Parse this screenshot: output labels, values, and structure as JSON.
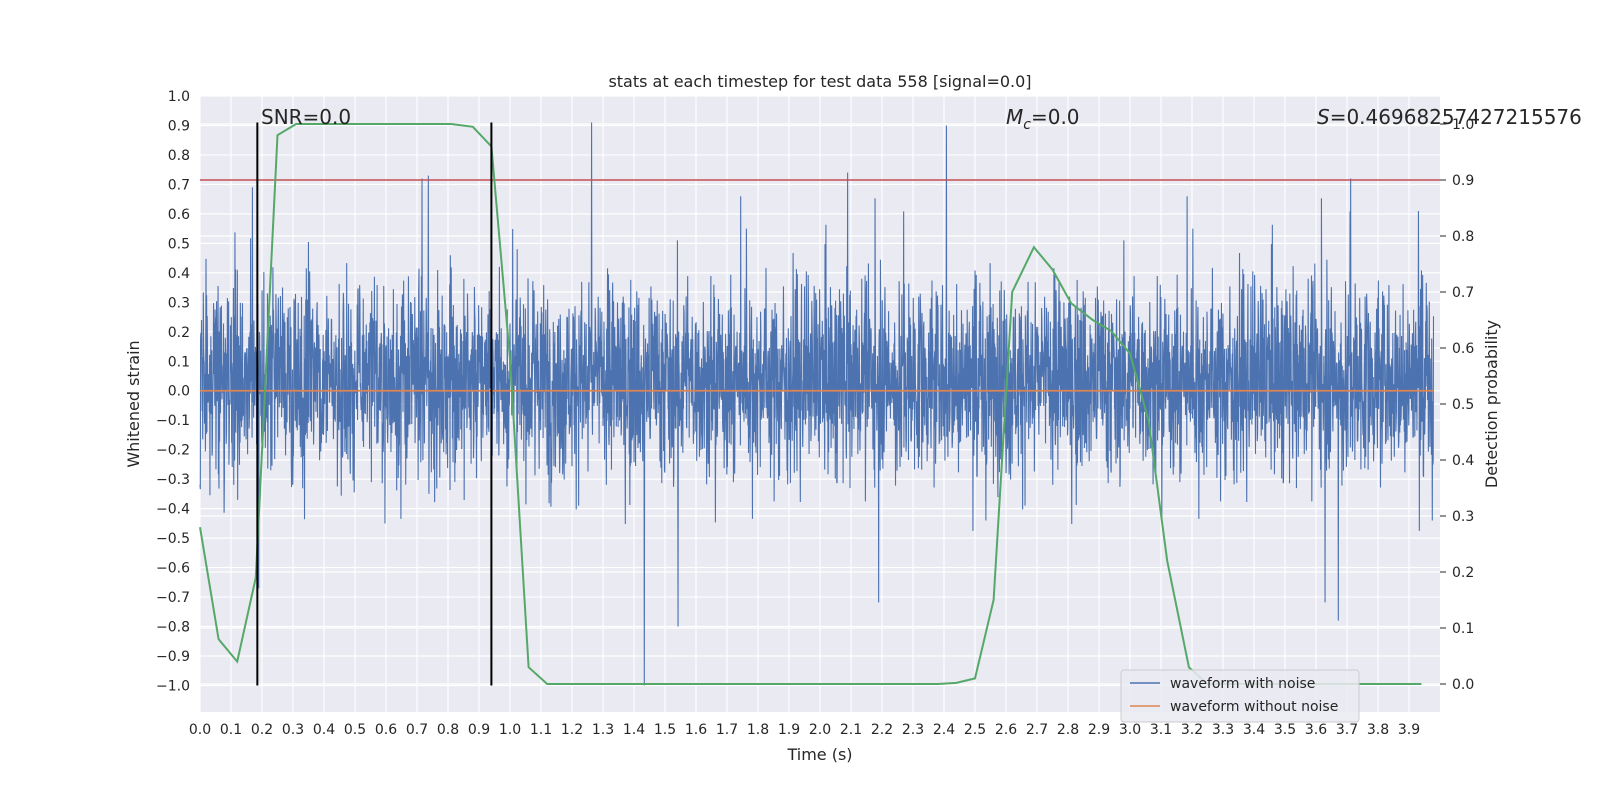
{
  "chart_data": {
    "type": "line",
    "title": "stats at each timestep for test data 558 [signal=0.0]",
    "xlabel": "Time (s)",
    "ylabel": "Whitened strain",
    "ylabel_right": "Detection probability",
    "xlim": [
      0.0,
      4.0
    ],
    "ylim": [
      -1.09,
      1.0
    ],
    "ylim_right": [
      -0.05,
      1.05
    ],
    "x_ticks": [
      "0.0",
      "0.1",
      "0.2",
      "0.3",
      "0.4",
      "0.5",
      "0.6",
      "0.7",
      "0.8",
      "0.9",
      "1.0",
      "1.1",
      "1.2",
      "1.3",
      "1.4",
      "1.5",
      "1.6",
      "1.7",
      "1.8",
      "1.9",
      "2.0",
      "2.1",
      "2.2",
      "2.3",
      "2.4",
      "2.5",
      "2.6",
      "2.7",
      "2.8",
      "2.9",
      "3.0",
      "3.1",
      "3.2",
      "3.3",
      "3.4",
      "3.5",
      "3.6",
      "3.7",
      "3.8",
      "3.9"
    ],
    "y_ticks": [
      "1.0",
      "0.9",
      "0.8",
      "0.7",
      "0.6",
      "0.5",
      "0.4",
      "0.3",
      "0.2",
      "0.1",
      "0.0",
      "−0.1",
      "−0.2",
      "−0.3",
      "−0.4",
      "−0.5",
      "−0.6",
      "−0.7",
      "−0.8",
      "−0.9",
      "−1.0"
    ],
    "y_right_ticks": [
      "0.0",
      "0.1",
      "0.2",
      "0.3",
      "0.4",
      "0.5",
      "0.6",
      "0.7",
      "0.8",
      "0.9",
      "1.0"
    ],
    "annotations": {
      "snr": "SNR=0.0",
      "mc_symbol": "M",
      "mc_sub": "c",
      "mc_value": "=0.0",
      "s_symbol": "S",
      "s_value": "=0.4696825742721557​6"
    },
    "threshold_right": 0.9,
    "vertical_lines_x": [
      0.185,
      0.94
    ],
    "series": [
      {
        "name": "waveform with noise",
        "color": "#4c72b0",
        "note": "dense noise, approx. range -1.0 to 0.91; generated pseudo-randomly",
        "spikes": [
          [
            0.17,
            0.69
          ],
          [
            0.19,
            -0.67
          ],
          [
            0.72,
            0.72
          ],
          [
            0.74,
            0.73
          ],
          [
            1.27,
            0.91
          ],
          [
            1.44,
            -1.0
          ],
          [
            1.55,
            -0.8
          ],
          [
            2.1,
            0.74
          ],
          [
            2.42,
            0.9
          ],
          [
            3.69,
            -0.78
          ],
          [
            3.73,
            0.72
          ],
          [
            3.95,
            0.61
          ]
        ]
      },
      {
        "name": "waveform without noise",
        "color": "#dd8452",
        "y": 0.0
      },
      {
        "name": "detection probability",
        "color": "#55a868",
        "axis": "right",
        "x": [
          0.0,
          0.06,
          0.12,
          0.18,
          0.25,
          0.31,
          0.38,
          0.44,
          0.5,
          0.56,
          0.62,
          0.68,
          0.75,
          0.81,
          0.88,
          0.94,
          1.0,
          1.06,
          1.12,
          1.19,
          1.25,
          1.31,
          1.38,
          1.44,
          1.5,
          1.56,
          1.62,
          1.69,
          1.75,
          1.81,
          1.88,
          1.94,
          2.0,
          2.06,
          2.12,
          2.19,
          2.25,
          2.31,
          2.38,
          2.44,
          2.5,
          2.56,
          2.62,
          2.69,
          2.75,
          2.81,
          2.88,
          2.94,
          3.0,
          3.06,
          3.12,
          3.19,
          3.25,
          3.31,
          3.38,
          3.44,
          3.5,
          3.56,
          3.62,
          3.69,
          3.75,
          3.81,
          3.88,
          3.94
        ],
        "y": [
          0.28,
          0.08,
          0.04,
          0.19,
          0.98,
          1.0,
          1.0,
          1.0,
          1.0,
          1.0,
          1.0,
          1.0,
          1.0,
          1.0,
          0.995,
          0.96,
          0.58,
          0.03,
          0.0,
          0.0,
          0.0,
          0.0,
          0.0,
          0.0,
          0.0,
          0.0,
          0.0,
          0.0,
          0.0,
          0.0,
          0.0,
          0.0,
          0.0,
          0.0,
          0.0,
          0.0,
          0.0,
          0.0,
          0.0,
          0.002,
          0.01,
          0.15,
          0.7,
          0.78,
          0.74,
          0.68,
          0.65,
          0.63,
          0.59,
          0.47,
          0.22,
          0.03,
          0.0,
          0.0,
          0.0,
          0.0,
          0.0,
          0.0,
          0.0,
          0.0,
          0.0,
          0.0,
          0.0,
          0.0
        ]
      }
    ],
    "legend": {
      "placement": "bottom-right",
      "entries": [
        {
          "label": "waveform with noise",
          "color": "#4c72b0"
        },
        {
          "label": "waveform without noise",
          "color": "#dd8452"
        }
      ]
    },
    "colors": {
      "background": "#eaeaf2",
      "grid": "#ffffff",
      "threshold": "#c44e52",
      "vline": "#000000"
    }
  }
}
